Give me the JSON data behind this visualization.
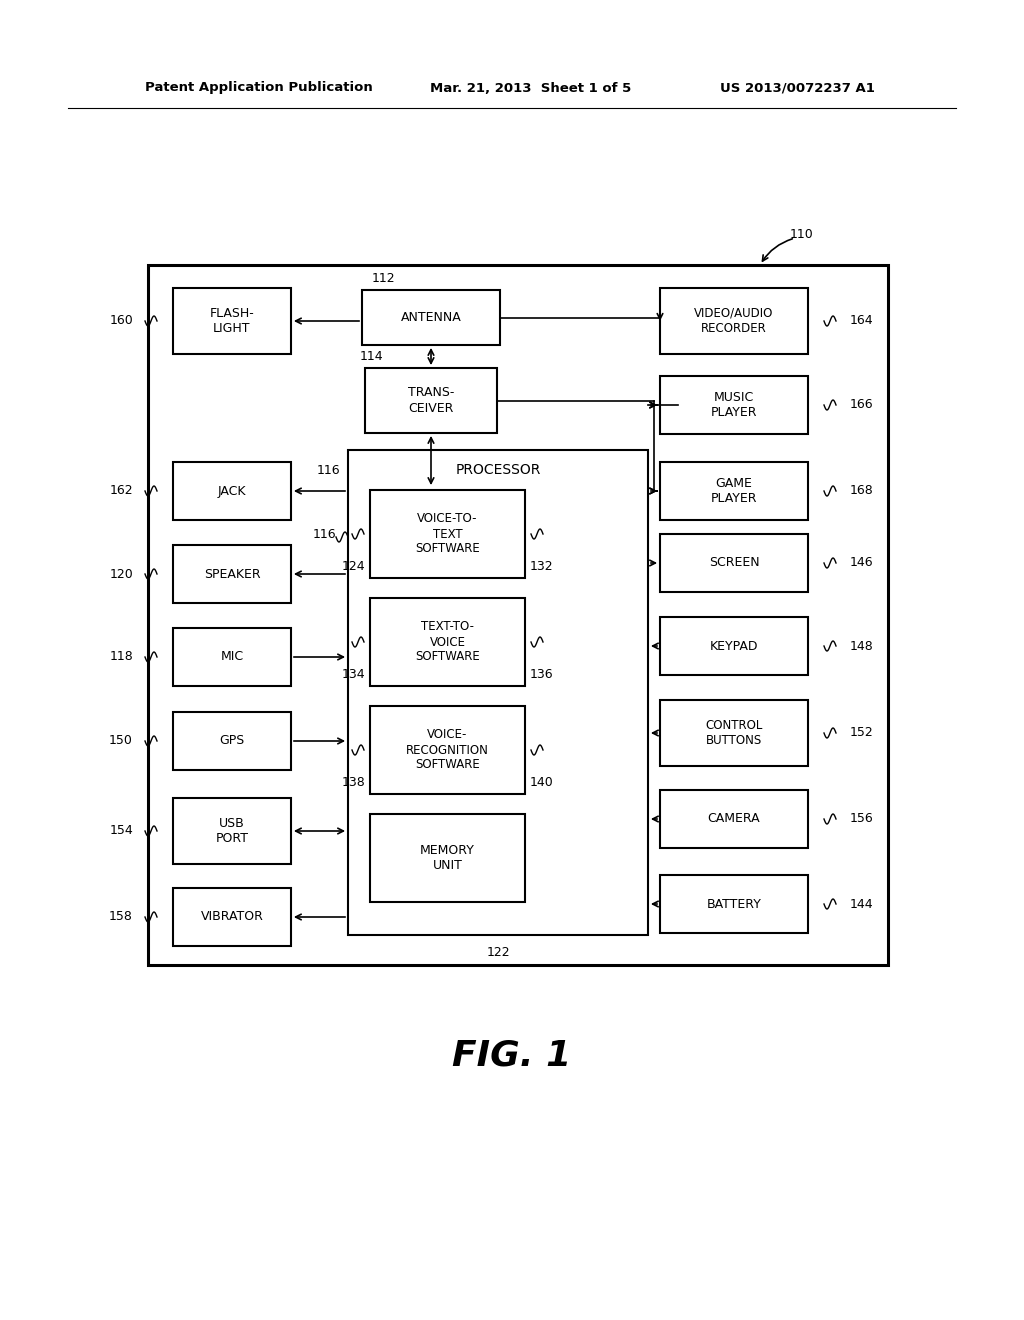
{
  "title_left": "Patent Application Publication",
  "title_center": "Mar. 21, 2013  Sheet 1 of 5",
  "title_right": "US 2013/0072237 A1",
  "fig_label": "FIG. 1",
  "bg_color": "#ffffff",
  "box_color": "#ffffff",
  "box_edge": "#000000",
  "text_color": "#000000"
}
